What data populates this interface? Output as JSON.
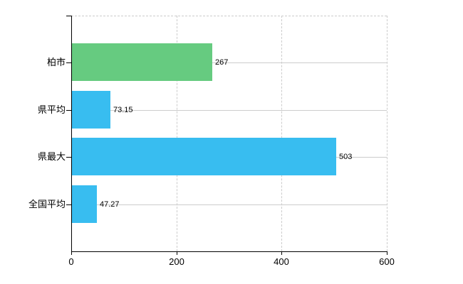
{
  "chart_data": {
    "type": "bar",
    "orientation": "horizontal",
    "title": "",
    "xlabel": "",
    "ylabel": "",
    "categories": [
      "柏市",
      "県平均",
      "県最大",
      "全国平均"
    ],
    "values": [
      267,
      73.15,
      503,
      47.27
    ],
    "value_labels": [
      "267",
      "73.15",
      "503",
      "47.27"
    ],
    "bar_colors": [
      "#66cb80",
      "#38bdf0",
      "#38bdf0",
      "#38bdf0"
    ],
    "xlim": [
      0,
      600
    ],
    "x_ticks": [
      0,
      200,
      400,
      600
    ],
    "x_tick_labels": [
      "0",
      "200",
      "400",
      "600"
    ],
    "grid": true,
    "legend": false
  },
  "colors": {
    "highlight_bar": "#66cb80",
    "default_bar": "#38bdf0",
    "gridline": "#cccccc",
    "axis": "#000000",
    "text": "#000000",
    "background": "#ffffff"
  }
}
